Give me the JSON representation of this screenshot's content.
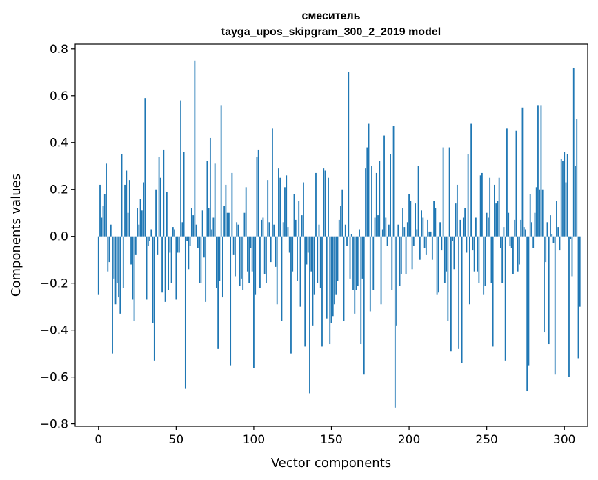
{
  "chart_data": {
    "type": "bar",
    "title": "смеситель",
    "subtitle": "tayga_upos_skipgram_300_2_2019 model",
    "xlabel": "Vector components",
    "ylabel": "Components values",
    "xlim": [
      -15,
      315
    ],
    "ylim": [
      -0.81,
      0.82
    ],
    "xticks": [
      0,
      50,
      100,
      150,
      200,
      250,
      300
    ],
    "xtick_labels": [
      "0",
      "50",
      "100",
      "150",
      "200",
      "250",
      "300"
    ],
    "yticks": [
      -0.8,
      -0.6,
      -0.4,
      -0.2,
      0.0,
      0.2,
      0.4,
      0.6,
      0.8
    ],
    "ytick_labels": [
      "−0.8",
      "−0.6",
      "−0.4",
      "−0.2",
      "0.0",
      "0.2",
      "0.4",
      "0.6",
      "0.8"
    ],
    "bar_color": "#1f77b4",
    "grid": false,
    "values": [
      -0.25,
      0.22,
      0.08,
      0.13,
      0.18,
      0.31,
      -0.15,
      -0.11,
      0.05,
      -0.5,
      -0.18,
      -0.29,
      -0.2,
      -0.26,
      -0.33,
      0.35,
      -0.22,
      0.22,
      0.28,
      0.1,
      0.24,
      -0.12,
      -0.27,
      -0.36,
      -0.08,
      0.12,
      0.05,
      0.16,
      0.11,
      0.23,
      0.59,
      -0.27,
      -0.04,
      -0.02,
      0.03,
      -0.37,
      -0.53,
      0.2,
      -0.08,
      0.34,
      0.25,
      -0.24,
      0.37,
      -0.28,
      0.19,
      -0.23,
      -0.07,
      -0.2,
      0.04,
      0.03,
      -0.27,
      -0.07,
      -0.07,
      0.58,
      0.06,
      0.36,
      -0.65,
      -0.02,
      -0.14,
      -0.04,
      0.12,
      0.09,
      0.75,
      0.05,
      -0.05,
      -0.2,
      -0.2,
      0.11,
      -0.09,
      -0.28,
      0.32,
      0.12,
      0.42,
      0.03,
      0.08,
      0.31,
      -0.22,
      -0.48,
      -0.19,
      0.56,
      -0.26,
      0.13,
      0.22,
      0.1,
      0.1,
      -0.55,
      0.27,
      -0.08,
      -0.17,
      0.06,
      0.05,
      -0.21,
      -0.18,
      -0.23,
      0.1,
      0.21,
      -0.15,
      -0.2,
      -0.05,
      -0.15,
      -0.56,
      -0.25,
      0.34,
      0.37,
      -0.22,
      0.07,
      0.08,
      -0.16,
      -0.2,
      0.24,
      0.06,
      -0.11,
      0.46,
      0.05,
      -0.13,
      -0.29,
      0.29,
      0.25,
      -0.36,
      0.06,
      0.21,
      0.26,
      0.04,
      -0.07,
      -0.5,
      -0.15,
      0.18,
      0.07,
      -0.19,
      0.15,
      -0.3,
      0.09,
      0.23,
      -0.47,
      -0.12,
      -0.07,
      -0.67,
      -0.15,
      -0.38,
      -0.25,
      0.27,
      -0.2,
      0.05,
      -0.22,
      -0.47,
      0.29,
      0.28,
      -0.35,
      0.25,
      -0.46,
      -0.37,
      -0.34,
      -0.29,
      -0.25,
      -0.19,
      0.07,
      0.13,
      0.2,
      -0.36,
      0.05,
      -0.04,
      0.7,
      -0.18,
      0.01,
      -0.23,
      -0.33,
      -0.23,
      -0.21,
      0.03,
      -0.46,
      -0.18,
      -0.59,
      0.29,
      0.38,
      0.48,
      -0.32,
      0.3,
      -0.23,
      0.08,
      0.27,
      0.09,
      0.32,
      -0.29,
      0.03,
      0.43,
      0.08,
      -0.04,
      0.05,
      0.35,
      -0.23,
      0.47,
      -0.73,
      -0.38,
      0.05,
      -0.21,
      -0.16,
      0.12,
      0.04,
      -0.16,
      0.06,
      0.18,
      0.15,
      -0.14,
      -0.04,
      0.14,
      0.03,
      0.3,
      -0.1,
      0.11,
      0.08,
      -0.05,
      -0.08,
      0.07,
      0.02,
      0.02,
      -0.1,
      0.15,
      0.12,
      -0.25,
      -0.24,
      0.06,
      -0.06,
      0.38,
      -0.2,
      -0.15,
      -0.36,
      0.38,
      -0.49,
      -0.02,
      -0.14,
      0.14,
      0.22,
      -0.48,
      0.07,
      -0.54,
      0.08,
      0.12,
      -0.07,
      0.35,
      -0.29,
      0.48,
      -0.06,
      -0.15,
      0.08,
      -0.15,
      -0.2,
      0.26,
      0.27,
      -0.25,
      -0.21,
      0.1,
      0.08,
      0.25,
      -0.2,
      -0.47,
      0.22,
      0.14,
      0.15,
      0.25,
      -0.05,
      -0.2,
      0.04,
      -0.53,
      0.46,
      0.1,
      -0.04,
      -0.05,
      -0.16,
      0.07,
      0.45,
      -0.15,
      -0.12,
      0.07,
      0.55,
      0.04,
      0.03,
      -0.66,
      -0.55,
      0.18,
      0.06,
      -0.05,
      0.1,
      0.21,
      0.56,
      0.2,
      0.56,
      0.2,
      -0.41,
      -0.11,
      0.06,
      -0.46,
      0.09,
      0.01,
      -0.03,
      -0.59,
      0.15,
      0.04,
      -0.06,
      0.33,
      0.32,
      0.36,
      0.23,
      0.35,
      -0.6,
      -0.01,
      -0.17,
      0.72,
      0.3,
      0.5,
      -0.52,
      -0.3
    ]
  }
}
